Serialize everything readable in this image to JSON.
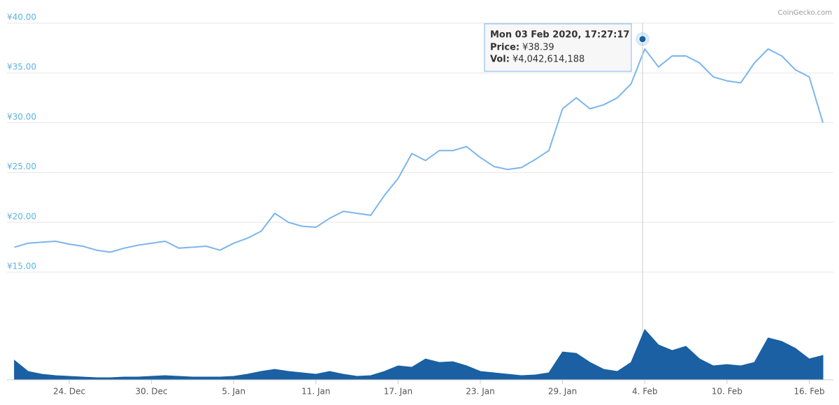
{
  "watermark": "CoinGecko.com",
  "chart_data": [
    {
      "type": "line",
      "categories": [
        null,
        null,
        null,
        null,
        "24. Dec",
        null,
        null,
        null,
        null,
        null,
        "30. Dec",
        null,
        null,
        null,
        null,
        null,
        "5. Jan",
        null,
        null,
        null,
        null,
        null,
        "11. Jan",
        null,
        null,
        null,
        null,
        null,
        "17. Jan",
        null,
        null,
        null,
        null,
        null,
        "23. Jan",
        null,
        null,
        null,
        null,
        null,
        "29. Jan",
        null,
        null,
        null,
        null,
        null,
        "4. Feb",
        null,
        null,
        null,
        null,
        null,
        "10. Feb",
        null,
        null,
        null,
        null,
        null,
        "16. Feb",
        null
      ],
      "values": [
        17.5,
        17.9,
        18.0,
        18.1,
        17.8,
        17.6,
        17.2,
        17.0,
        17.4,
        17.7,
        17.9,
        18.1,
        17.4,
        17.5,
        17.6,
        17.2,
        17.9,
        18.4,
        19.1,
        20.9,
        20.0,
        19.6,
        19.5,
        20.4,
        21.1,
        20.9,
        20.7,
        22.7,
        24.4,
        26.9,
        26.2,
        27.2,
        27.2,
        27.6,
        26.5,
        25.6,
        25.3,
        25.5,
        26.3,
        27.2,
        31.4,
        32.5,
        31.4,
        31.8,
        32.5,
        33.9,
        37.4,
        35.6,
        36.7,
        36.7,
        36.0,
        34.6,
        34.2,
        34.0,
        36.0,
        37.4,
        36.7,
        35.3,
        34.6,
        30.0
      ],
      "color": "#7cb5ec",
      "ylim": [
        15,
        40
      ],
      "yticks": [
        {
          "value": 15,
          "label": "¥15.00"
        },
        {
          "value": 20,
          "label": "¥20.00"
        },
        {
          "value": 25,
          "label": "¥25.00"
        },
        {
          "value": 30,
          "label": "¥30.00"
        },
        {
          "value": 35,
          "label": "¥35.00"
        },
        {
          "value": 40,
          "label": "¥40.00"
        }
      ],
      "grid": true,
      "tooltip": {
        "title": "Mon 03 Feb 2020, 17:27:17",
        "rows": [
          {
            "label": "Price:",
            "value": 38.39,
            "value_label": "¥38.39"
          },
          {
            "label": "Vol:",
            "value": 4042614188,
            "value_label": "¥4,042,614,188"
          }
        ]
      }
    },
    {
      "type": "area",
      "values": [
        4200000000,
        1800000000,
        1200000000,
        900000000,
        750000000,
        600000000,
        450000000,
        450000000,
        600000000,
        600000000,
        750000000,
        900000000,
        750000000,
        600000000,
        600000000,
        600000000,
        750000000,
        1200000000,
        1800000000,
        2250000000,
        1800000000,
        1500000000,
        1200000000,
        1800000000,
        1200000000,
        750000000,
        900000000,
        1800000000,
        3000000000,
        2700000000,
        4500000000,
        3750000000,
        3900000000,
        3000000000,
        1800000000,
        1500000000,
        1200000000,
        900000000,
        1050000000,
        1500000000,
        6000000000,
        5700000000,
        3750000000,
        2250000000,
        1800000000,
        3750000000,
        10800000000,
        7500000000,
        6300000000,
        7200000000,
        4500000000,
        3000000000,
        3300000000,
        3000000000,
        3750000000,
        9000000000,
        8250000000,
        6750000000,
        4500000000,
        5250000000
      ],
      "color": "#1a60a3",
      "ylim": [
        0,
        20000000000
      ]
    }
  ]
}
